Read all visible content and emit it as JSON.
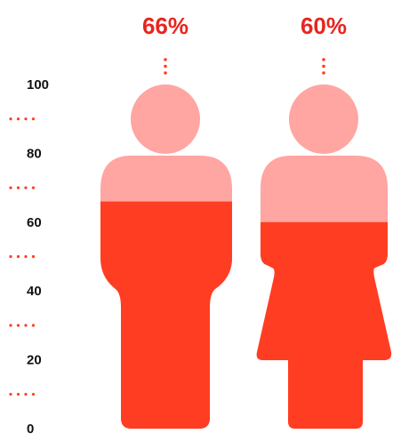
{
  "chart_data": {
    "type": "pictorial-bar",
    "title": "",
    "xlabel": "",
    "ylabel": "",
    "ylim": [
      0,
      100
    ],
    "y_ticks": [
      0,
      20,
      40,
      60,
      80,
      100
    ],
    "y_minor_dots": [
      10,
      30,
      50,
      70,
      90
    ],
    "categories": [
      "male",
      "female"
    ],
    "values": [
      66,
      60
    ],
    "labels": [
      "66%",
      "60%"
    ],
    "grid": false,
    "legend": "none"
  },
  "colors": {
    "fill": "#ff3d22",
    "unfilled": "#ffa5a2",
    "label": "#e8251f",
    "minor_dot": "#ff3d22",
    "tick_text": "#111111"
  },
  "icons": [
    "male-figure-icon",
    "female-figure-icon"
  ]
}
